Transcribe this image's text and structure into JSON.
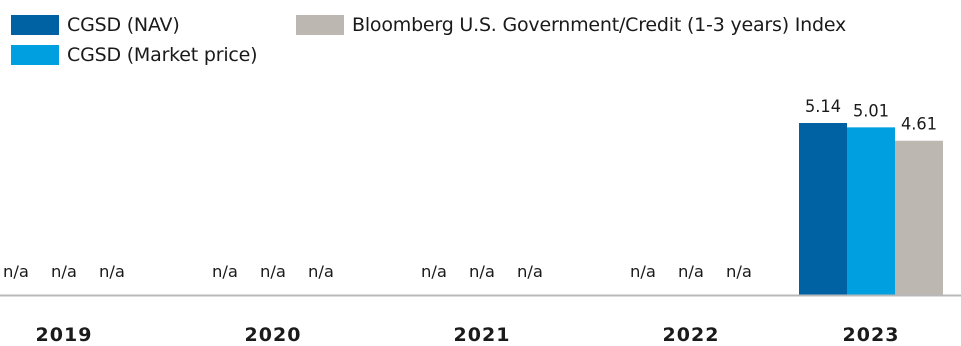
{
  "chart_data": {
    "type": "bar",
    "categories": [
      "2019",
      "2020",
      "2021",
      "2022",
      "2023"
    ],
    "series": [
      {
        "name": "CGSD (NAV)",
        "color": "#0062a3",
        "values": [
          null,
          null,
          null,
          null,
          5.14
        ],
        "labels": [
          "n/a",
          "n/a",
          "n/a",
          "n/a",
          "5.14"
        ]
      },
      {
        "name": "CGSD (Market price)",
        "color": "#009fe0",
        "values": [
          null,
          null,
          null,
          null,
          5.01
        ],
        "labels": [
          "n/a",
          "n/a",
          "n/a",
          "n/a",
          "5.01"
        ]
      },
      {
        "name": "Bloomberg U.S. Government/Credit (1-3 years) Index",
        "color": "#bcb7b1",
        "values": [
          null,
          null,
          null,
          null,
          4.61
        ],
        "labels": [
          "n/a",
          "n/a",
          "n/a",
          "n/a",
          "4.61"
        ]
      }
    ],
    "ylim": [
      0,
      5.14
    ],
    "grid": false,
    "legend_position": "top-left"
  }
}
